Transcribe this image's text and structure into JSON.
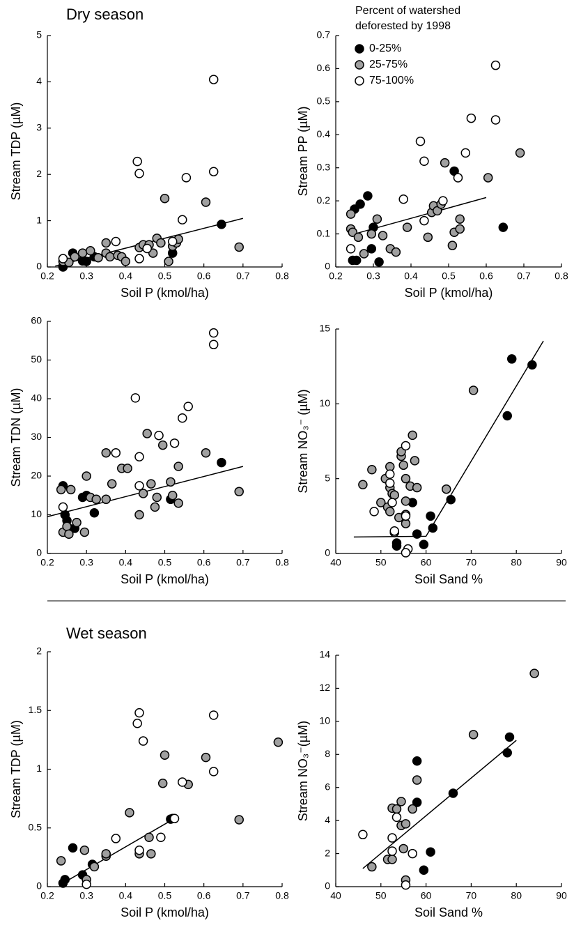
{
  "chart_data": [
    {
      "type": "scatter",
      "title": "Dry season",
      "x_label": "Soil P (kmol/ha)",
      "y_label": "Stream TDP (µM)",
      "xlim": [
        0.2,
        0.8
      ],
      "ylim": [
        0,
        5
      ],
      "xticks": [
        0.2,
        0.3,
        0.4,
        0.5,
        0.6,
        0.7,
        0.8
      ],
      "yticks": [
        0,
        1,
        2,
        3,
        4,
        5
      ],
      "series": [
        {
          "color": "#000000",
          "x": [
            0.24,
            0.24,
            0.265,
            0.29,
            0.3,
            0.32,
            0.52,
            0.645
          ],
          "values": [
            0.02,
            0.0,
            0.3,
            0.13,
            0.12,
            0.22,
            0.3,
            0.92
          ]
        },
        {
          "color": "#a0a0a0",
          "x": [
            0.24,
            0.255,
            0.27,
            0.29,
            0.31,
            0.33,
            0.35,
            0.35,
            0.36,
            0.38,
            0.39,
            0.4,
            0.435,
            0.445,
            0.46,
            0.47,
            0.48,
            0.49,
            0.5,
            0.51,
            0.52,
            0.53,
            0.535,
            0.605,
            0.69
          ],
          "values": [
            0.12,
            0.1,
            0.22,
            0.3,
            0.35,
            0.2,
            0.3,
            0.52,
            0.22,
            0.25,
            0.22,
            0.12,
            0.42,
            0.48,
            0.48,
            0.3,
            0.62,
            0.52,
            1.48,
            0.12,
            0.45,
            0.52,
            0.6,
            1.4,
            0.43
          ]
        },
        {
          "color": "#ffffff",
          "x": [
            0.24,
            0.375,
            0.43,
            0.435,
            0.435,
            0.455,
            0.52,
            0.545,
            0.555,
            0.625,
            0.625
          ],
          "values": [
            0.18,
            0.55,
            2.28,
            2.02,
            0.18,
            0.4,
            0.55,
            1.02,
            1.93,
            4.05,
            2.06
          ]
        }
      ],
      "fit": {
        "x": [
          0.22,
          0.7
        ],
        "y": [
          0.02,
          1.05
        ]
      }
    },
    {
      "type": "scatter",
      "y_label": "Stream PP (µM)",
      "x_label": "Soil P (kmol/ha)",
      "legend_title": [
        "Percent of watershed",
        "deforested by 1998"
      ],
      "xlim": [
        0.2,
        0.8
      ],
      "ylim": [
        0,
        0.7
      ],
      "xticks": [
        0.2,
        0.3,
        0.4,
        0.5,
        0.6,
        0.7,
        0.8
      ],
      "yticks": [
        0,
        0.1,
        0.2,
        0.3,
        0.4,
        0.5,
        0.6,
        0.7
      ],
      "series": [
        {
          "name": "0-25%",
          "color": "#000000",
          "x": [
            0.245,
            0.25,
            0.265,
            0.285,
            0.295,
            0.3,
            0.315,
            0.515,
            0.645,
            0.255
          ],
          "values": [
            0.02,
            0.175,
            0.19,
            0.215,
            0.055,
            0.12,
            0.015,
            0.29,
            0.12,
            0.02
          ]
        },
        {
          "name": "25-75%",
          "color": "#a0a0a0",
          "x": [
            0.24,
            0.24,
            0.245,
            0.26,
            0.275,
            0.295,
            0.31,
            0.325,
            0.345,
            0.36,
            0.39,
            0.445,
            0.455,
            0.46,
            0.47,
            0.48,
            0.49,
            0.51,
            0.515,
            0.53,
            0.53,
            0.605,
            0.69
          ],
          "values": [
            0.115,
            0.16,
            0.105,
            0.09,
            0.04,
            0.1,
            0.145,
            0.095,
            0.055,
            0.045,
            0.12,
            0.09,
            0.165,
            0.185,
            0.17,
            0.19,
            0.315,
            0.065,
            0.105,
            0.115,
            0.145,
            0.27,
            0.345
          ]
        },
        {
          "name": "75-100%",
          "color": "#ffffff",
          "x": [
            0.24,
            0.38,
            0.425,
            0.435,
            0.435,
            0.485,
            0.525,
            0.545,
            0.56,
            0.625,
            0.625
          ],
          "values": [
            0.055,
            0.205,
            0.38,
            0.32,
            0.14,
            0.2,
            0.27,
            0.345,
            0.45,
            0.61,
            0.445
          ]
        }
      ],
      "fit": {
        "x": [
          0.25,
          0.6
        ],
        "y": [
          0.1,
          0.21
        ]
      }
    },
    {
      "type": "scatter",
      "y_label": "Stream TDN (µM)",
      "x_label": "Soil P (kmol/ha)",
      "xlim": [
        0.2,
        0.8
      ],
      "ylim": [
        0,
        60
      ],
      "xticks": [
        0.2,
        0.3,
        0.4,
        0.5,
        0.6,
        0.7,
        0.8
      ],
      "yticks": [
        0,
        10,
        20,
        30,
        40,
        50,
        60
      ],
      "series": [
        {
          "color": "#000000",
          "x": [
            0.24,
            0.245,
            0.25,
            0.255,
            0.27,
            0.29,
            0.3,
            0.32,
            0.515,
            0.645
          ],
          "values": [
            17.5,
            10,
            8.5,
            6.5,
            6.5,
            14.5,
            15,
            10.5,
            14,
            23.5
          ]
        },
        {
          "color": "#a0a0a0",
          "x": [
            0.235,
            0.24,
            0.25,
            0.255,
            0.26,
            0.275,
            0.295,
            0.3,
            0.31,
            0.325,
            0.35,
            0.35,
            0.365,
            0.39,
            0.405,
            0.435,
            0.445,
            0.455,
            0.465,
            0.475,
            0.48,
            0.495,
            0.515,
            0.52,
            0.535,
            0.535,
            0.605,
            0.69
          ],
          "values": [
            16.5,
            5.5,
            7,
            5,
            16.5,
            8,
            5.5,
            20,
            14.5,
            14,
            26,
            14,
            18,
            22,
            22,
            10,
            15.5,
            31,
            18,
            12,
            14.5,
            28,
            18.5,
            15,
            22.5,
            13,
            26,
            16
          ]
        },
        {
          "color": "#ffffff",
          "x": [
            0.24,
            0.375,
            0.425,
            0.435,
            0.435,
            0.485,
            0.525,
            0.545,
            0.56,
            0.625,
            0.625
          ],
          "values": [
            12,
            26,
            40.2,
            25,
            17.5,
            30.5,
            28.5,
            35,
            38,
            57,
            54
          ]
        }
      ],
      "fit": {
        "x": [
          0.2,
          0.7
        ],
        "y": [
          9.5,
          22.5
        ]
      }
    },
    {
      "type": "scatter",
      "y_label": "Stream NO₃⁻ (µM)",
      "x_label": "Soil Sand %",
      "xlim": [
        40,
        90
      ],
      "ylim": [
        0,
        15
      ],
      "xticks": [
        40,
        50,
        60,
        70,
        80,
        90
      ],
      "yticks": [
        0,
        5,
        10,
        15
      ],
      "series": [
        {
          "color": "#000000",
          "x": [
            53.5,
            53.5,
            57,
            58,
            59.5,
            61,
            61.5,
            65.5,
            78,
            79,
            83.5
          ],
          "values": [
            0.7,
            0.5,
            3.4,
            1.3,
            0.6,
            2.5,
            1.7,
            3.6,
            9.2,
            13,
            12.6
          ]
        },
        {
          "color": "#a0a0a0",
          "x": [
            46,
            48,
            50,
            51,
            51.5,
            52,
            52,
            52,
            52.5,
            53,
            54,
            54.5,
            54.5,
            55,
            55.5,
            55.5,
            55.5,
            55.5,
            56.5,
            57,
            57.5,
            58,
            64.5,
            70.5,
            53
          ],
          "values": [
            4.6,
            5.6,
            3.4,
            5,
            3.1,
            5.8,
            4.4,
            2.8,
            4,
            1.4,
            2.4,
            6.5,
            6.8,
            5.9,
            5,
            3.5,
            2.6,
            2,
            4.5,
            7.9,
            6.2,
            4.4,
            4.3,
            10.9,
            3.9
          ]
        },
        {
          "color": "#ffffff",
          "x": [
            48.5,
            52,
            52,
            52.5,
            53,
            55.5,
            55.5,
            56,
            55.5
          ],
          "values": [
            2.8,
            5.3,
            4.7,
            3.4,
            1.5,
            7.2,
            2.5,
            0.3,
            0.05
          ]
        }
      ],
      "fit": {
        "x": [
          44,
          60,
          86
        ],
        "y": [
          1.1,
          1.15,
          14.2
        ]
      }
    },
    {
      "type": "scatter",
      "title": "Wet season",
      "y_label": "Stream TDP (µM)",
      "x_label": "Soil P (kmol/ha)",
      "xlim": [
        0.2,
        0.8
      ],
      "ylim": [
        0,
        2
      ],
      "xticks": [
        0.2,
        0.3,
        0.4,
        0.5,
        0.6,
        0.7,
        0.8
      ],
      "yticks": [
        0,
        0.5,
        1,
        1.5,
        2
      ],
      "series": [
        {
          "color": "#000000",
          "x": [
            0.24,
            0.245,
            0.265,
            0.29,
            0.315,
            0.52,
            0.515
          ],
          "values": [
            0.03,
            0.06,
            0.33,
            0.1,
            0.19,
            0.58,
            0.575
          ]
        },
        {
          "color": "#a0a0a0",
          "x": [
            0.235,
            0.295,
            0.3,
            0.32,
            0.35,
            0.35,
            0.41,
            0.435,
            0.46,
            0.465,
            0.495,
            0.5,
            0.56,
            0.605,
            0.69,
            0.79
          ],
          "values": [
            0.22,
            0.31,
            0.06,
            0.17,
            0.26,
            0.28,
            0.63,
            0.28,
            0.42,
            0.28,
            0.88,
            1.12,
            0.87,
            1.1,
            0.57,
            1.23
          ]
        },
        {
          "color": "#ffffff",
          "x": [
            0.3,
            0.375,
            0.43,
            0.435,
            0.435,
            0.445,
            0.49,
            0.545,
            0.525,
            0.625,
            0.625
          ],
          "values": [
            0.02,
            0.41,
            1.39,
            1.48,
            0.31,
            1.24,
            0.42,
            0.89,
            0.58,
            1.46,
            0.98
          ]
        }
      ],
      "fit": {
        "x": [
          0.24,
          0.53
        ],
        "y": [
          0.03,
          0.59
        ]
      }
    },
    {
      "type": "scatter",
      "y_label": "Stream NO₃⁻(µM)",
      "x_label": "Soil Sand %",
      "xlim": [
        40,
        90
      ],
      "ylim": [
        0,
        14
      ],
      "xticks": [
        40,
        50,
        60,
        70,
        80,
        90
      ],
      "yticks": [
        0,
        2,
        4,
        6,
        8,
        10,
        12,
        14
      ],
      "series": [
        {
          "color": "#000000",
          "x": [
            58,
            58,
            59.5,
            61,
            66,
            78,
            78.5
          ],
          "values": [
            7.6,
            5.1,
            1.0,
            2.1,
            5.65,
            8.1,
            9.05
          ]
        },
        {
          "color": "#a0a0a0",
          "x": [
            48,
            51.5,
            52.5,
            52.5,
            53.5,
            54.5,
            54.5,
            55,
            55.5,
            55.5,
            57,
            58,
            70.5,
            84
          ],
          "values": [
            1.2,
            1.65,
            4.75,
            1.65,
            4.7,
            5.15,
            3.7,
            2.3,
            0.4,
            3.8,
            4.7,
            6.45,
            9.2,
            12.9
          ]
        },
        {
          "color": "#ffffff",
          "x": [
            46,
            52.5,
            52.5,
            53.5,
            55.5,
            57
          ],
          "values": [
            3.15,
            2.95,
            2.15,
            4.2,
            0.1,
            2.0
          ]
        }
      ],
      "fit": {
        "x": [
          46,
          80
        ],
        "y": [
          1.1,
          8.85
        ]
      }
    }
  ]
}
